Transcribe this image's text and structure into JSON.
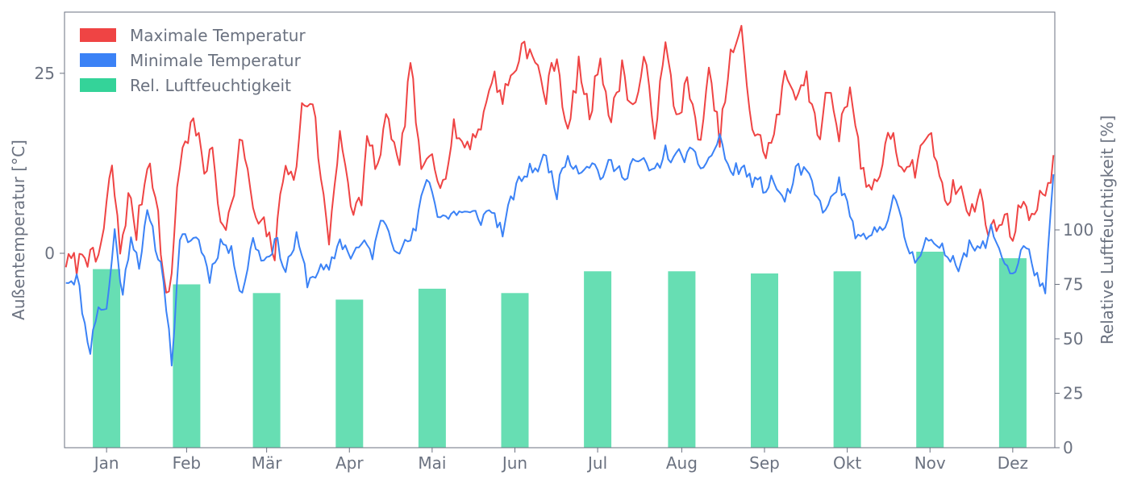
{
  "chart_data": {
    "type": "line",
    "xlabel": "",
    "ylabel": "Außentemperatur [°C]",
    "ylabel_right": "Relative Luftfeuchtigkeit [%]",
    "ylim": [
      -27,
      33.5
    ],
    "ylim_right": [
      0,
      200
    ],
    "month_labels": [
      "Jan",
      "Feb",
      "Mär",
      "Apr",
      "Mai",
      "Jun",
      "Jul",
      "Aug",
      "Sep",
      "Okt",
      "Nov",
      "Dez"
    ],
    "y_ticks_left": [
      "0",
      "25"
    ],
    "y_ticks_right": [
      "0",
      "25",
      "50",
      "75",
      "100"
    ],
    "legend_position": "top-left",
    "colors": {
      "max": "#ef4444",
      "min": "#3b82f6",
      "humidity": "#34d399"
    },
    "series": [
      {
        "name": "Maximale Temperatur",
        "kind": "line",
        "anchors_day": [
          1,
          5,
          8,
          12,
          15,
          18,
          21,
          24,
          27,
          30,
          32,
          35,
          38,
          40,
          42,
          45,
          48,
          52,
          55,
          58,
          62,
          65,
          68,
          70,
          74,
          78,
          82,
          85,
          88,
          92,
          95,
          98,
          102,
          106,
          110,
          112,
          116,
          120,
          124,
          128,
          132,
          136,
          140,
          144,
          148,
          152,
          156,
          158,
          162,
          166,
          170,
          174,
          178,
          182,
          186,
          190,
          194,
          198,
          202,
          206,
          210,
          214,
          218,
          222,
          226,
          230,
          234,
          238,
          242,
          246,
          250,
          254,
          258,
          262,
          266,
          270,
          274,
          278,
          282,
          286,
          290,
          294,
          298,
          302,
          306,
          310,
          314,
          318,
          322,
          326,
          330,
          334,
          338,
          342,
          346,
          350,
          354,
          358,
          362,
          365
        ],
        "anchors_value": [
          -1,
          -2,
          1,
          -2,
          3,
          12,
          0,
          8,
          3,
          10,
          14,
          5,
          -7,
          -3,
          10,
          16,
          18,
          12,
          14,
          5,
          6,
          15,
          12,
          5,
          3,
          0,
          14,
          9,
          20,
          22,
          10,
          2,
          18,
          5,
          8,
          15,
          12,
          19,
          10,
          27,
          10,
          15,
          10,
          17,
          15,
          17,
          20,
          25,
          22,
          25,
          30,
          26,
          22,
          28,
          16,
          26,
          19,
          28,
          18,
          26,
          20,
          26,
          18,
          28,
          19,
          24,
          15,
          24,
          16,
          27,
          30,
          18,
          14,
          16,
          24,
          23,
          25,
          15,
          23,
          17,
          24,
          12,
          9,
          13,
          17,
          10,
          11,
          17,
          13,
          8,
          10,
          5,
          8,
          3,
          5,
          3,
          8,
          5,
          9,
          13
        ],
        "noise": 1.8,
        "seed": 7
      },
      {
        "name": "Minimale Temperatur",
        "kind": "line",
        "anchors_day": [
          1,
          5,
          8,
          10,
          13,
          16,
          19,
          22,
          25,
          28,
          31,
          34,
          37,
          40,
          43,
          46,
          50,
          54,
          58,
          62,
          66,
          70,
          74,
          78,
          82,
          86,
          90,
          94,
          98,
          102,
          106,
          110,
          114,
          118,
          122,
          126,
          130,
          134,
          138,
          142,
          146,
          150,
          154,
          158,
          162,
          166,
          170,
          174,
          178,
          182,
          186,
          190,
          194,
          198,
          202,
          206,
          210,
          214,
          218,
          222,
          226,
          230,
          234,
          238,
          242,
          246,
          250,
          254,
          258,
          262,
          266,
          270,
          274,
          278,
          282,
          286,
          290,
          294,
          298,
          302,
          306,
          310,
          314,
          318,
          322,
          326,
          330,
          334,
          338,
          342,
          346,
          350,
          354,
          358,
          362,
          365
        ],
        "anchors_value": [
          -3.5,
          -3,
          -10,
          -13,
          -7,
          -8,
          3,
          -6,
          3,
          -1,
          5,
          1,
          -3,
          -15,
          1,
          2,
          2,
          -3,
          2,
          0,
          -5,
          2,
          -1,
          2,
          -2,
          2,
          -4,
          -2,
          -3,
          2,
          0,
          1,
          0,
          5,
          2,
          1,
          3,
          11,
          6,
          5,
          6,
          5,
          5,
          6,
          3,
          8,
          11,
          12,
          13,
          9,
          14,
          12,
          13,
          11,
          12,
          11,
          13,
          12,
          11,
          14,
          13,
          14,
          12,
          13,
          16,
          11,
          12,
          10,
          9,
          10,
          7,
          11,
          11,
          7,
          6,
          10,
          5,
          1,
          2,
          4,
          8,
          2,
          -1,
          3,
          0,
          0,
          -1,
          1,
          0,
          3,
          0,
          -3,
          1,
          -2,
          -6,
          10
        ],
        "noise": 1.2,
        "seed": 11
      },
      {
        "name": "Rel. Luftfeuchtigkeit",
        "kind": "bar",
        "axis": "right",
        "values": [
          82,
          75,
          71,
          68,
          73,
          71,
          81,
          81,
          80,
          81,
          90,
          87
        ]
      }
    ]
  }
}
